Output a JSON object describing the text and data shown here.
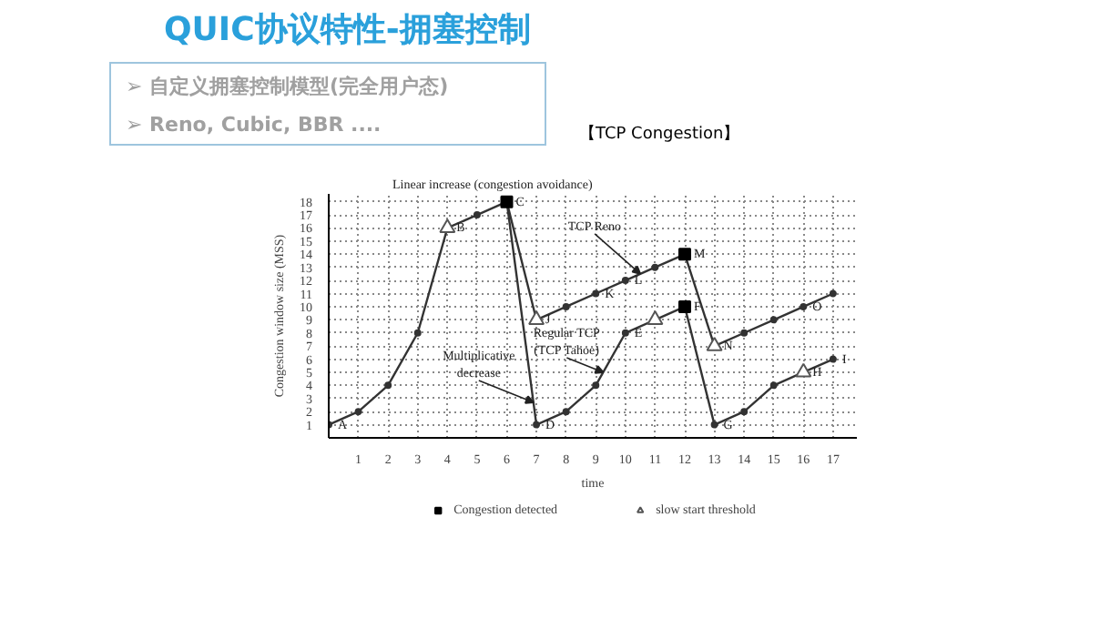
{
  "chart_data": {
    "type": "line",
    "title": "QUIC协议特性-拥塞控制",
    "subtitle": [
      "➢ 自定义拥塞控制模型(完全用户态)",
      "➢ Reno, Cubic, BBR ...."
    ],
    "xlabel": "time",
    "ylabel": "Congestion window size (MSS)",
    "x": [
      0,
      1,
      2,
      3,
      4,
      5,
      6,
      7,
      8,
      9,
      10,
      11,
      12,
      13,
      14,
      15,
      16,
      17
    ],
    "series": [
      {
        "color": "#333333",
        "values": [
          1,
          2,
          4,
          8,
          16,
          17,
          18,
          9,
          10,
          11,
          12,
          13,
          14,
          7,
          8,
          9,
          10,
          11
        ]
      },
      {
        "color": "#333333",
        "x": [
          6,
          7,
          8,
          9,
          10,
          11,
          12,
          13,
          14,
          15,
          16,
          17
        ],
        "values": [
          18,
          1,
          2,
          4,
          8,
          9,
          10,
          1,
          2,
          4,
          5,
          6
        ]
      },
      {
        "type": "scatter",
        "name": "Congestion detected",
        "marker": "square",
        "color": "#000000",
        "x": [
          6,
          12,
          12
        ],
        "values": [
          18,
          14,
          10
        ]
      },
      {
        "type": "scatter",
        "name": "slow start threshold",
        "marker": "triangle",
        "color": "#555555",
        "x": [
          4,
          7,
          11,
          13,
          16
        ],
        "values": [
          16,
          9,
          9,
          7,
          5
        ]
      }
    ],
    "marker": "circle",
    "line_style": "solid",
    "xlim": [
      0,
      17.8
    ],
    "ylim": [
      0,
      18.6
    ],
    "xticks": [
      1,
      2,
      3,
      4,
      5,
      6,
      7,
      8,
      9,
      10,
      11,
      12,
      13,
      14,
      15,
      16,
      17
    ],
    "yticks": [
      1,
      2,
      3,
      4,
      5,
      6,
      7,
      8,
      9,
      10,
      11,
      12,
      13,
      14,
      15,
      16,
      17,
      18
    ],
    "grid": true,
    "legend": "bottom",
    "annotations": [
      "【TCP Congestion】",
      {
        "text": "A",
        "x": 0,
        "y": 1
      },
      {
        "text": "B",
        "x": 4,
        "y": 16
      },
      {
        "text": "C",
        "x": 6,
        "y": 18
      },
      {
        "text": "D",
        "x": 7,
        "y": 1
      },
      {
        "text": "E",
        "x": 10,
        "y": 8
      },
      {
        "text": "F",
        "x": 12,
        "y": 10
      },
      {
        "text": "G",
        "x": 13,
        "y": 1
      },
      {
        "text": "H",
        "x": 16,
        "y": 5
      },
      {
        "text": "I",
        "x": 17,
        "y": 6
      },
      {
        "text": "J",
        "x": 7,
        "y": 9
      },
      {
        "text": "K",
        "x": 9,
        "y": 11
      },
      {
        "text": "L",
        "x": 10,
        "y": 12
      },
      {
        "text": "M",
        "x": 12,
        "y": 14
      },
      {
        "text": "N",
        "x": 13,
        "y": 7
      },
      {
        "text": "O",
        "x": 16,
        "y": 10
      },
      "Linear increase (congestion avoidance)",
      {
        "text": "TCP Reno",
        "x": 10.5,
        "y": 12.5
      },
      {
        "text": "Regular TCP (TCP Tahoe)",
        "x": 9.25,
        "y": 5
      },
      {
        "text": "Multiplicative decrease",
        "x": 6.9,
        "y": 2.7
      }
    ]
  }
}
